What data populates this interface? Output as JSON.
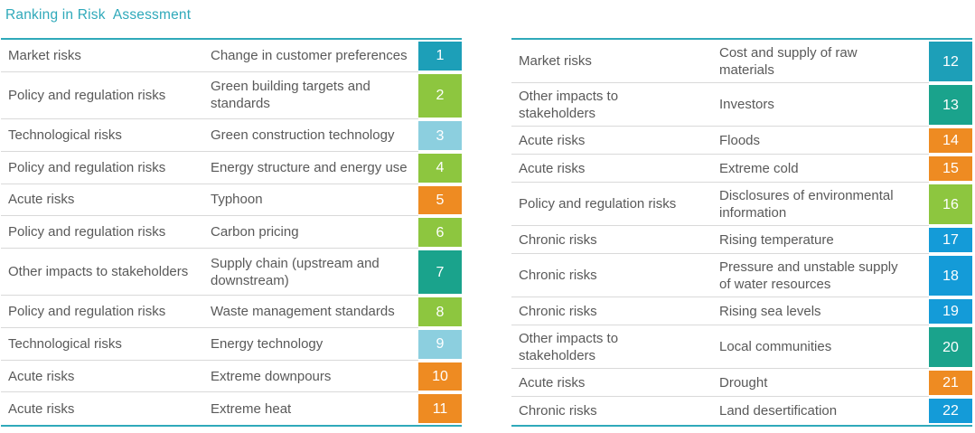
{
  "title": "Ranking in Risk  Assessment",
  "colors": {
    "title": "#2fa9ba",
    "table_border": "#2fa9ba",
    "row_divider": "#d9d9d9",
    "text": "#595959",
    "badge_text": "#ffffff",
    "categories": {
      "Market risks": "#1d9fb8",
      "Policy and regulation risks": "#8dc63f",
      "Technological risks": "#8ccfdf",
      "Acute risks": "#ee8b22",
      "Other impacts to stakeholders": "#1aa38c",
      "Chronic risks": "#149bd8"
    }
  },
  "tables": [
    {
      "rows": [
        {
          "category": "Market risks",
          "risk": "Change in customer preferences",
          "rank": 1
        },
        {
          "category": "Policy and regulation risks",
          "risk": "Green building targets and standards",
          "rank": 2
        },
        {
          "category": "Technological risks",
          "risk": "Green construction technology",
          "rank": 3
        },
        {
          "category": "Policy and regulation risks",
          "risk": "Energy structure and energy use",
          "rank": 4
        },
        {
          "category": "Acute risks",
          "risk": "Typhoon",
          "rank": 5
        },
        {
          "category": "Policy and regulation risks",
          "risk": "Carbon pricing",
          "rank": 6
        },
        {
          "category": "Other impacts to stakeholders",
          "risk": "Supply chain (upstream and downstream)",
          "rank": 7
        },
        {
          "category": "Policy and regulation risks",
          "risk": "Waste management standards",
          "rank": 8
        },
        {
          "category": "Technological risks",
          "risk": "Energy technology",
          "rank": 9
        },
        {
          "category": "Acute risks",
          "risk": "Extreme downpours",
          "rank": 10
        },
        {
          "category": "Acute risks",
          "risk": "Extreme heat",
          "rank": 11
        }
      ]
    },
    {
      "rows": [
        {
          "category": "Market risks",
          "risk": "Cost and supply of raw materials",
          "rank": 12
        },
        {
          "category": "Other impacts to stakeholders",
          "risk": "Investors",
          "rank": 13
        },
        {
          "category": "Acute risks",
          "risk": "Floods",
          "rank": 14
        },
        {
          "category": "Acute risks",
          "risk": "Extreme cold",
          "rank": 15
        },
        {
          "category": "Policy and regulation risks",
          "risk": "Disclosures of environmental information",
          "rank": 16
        },
        {
          "category": "Chronic risks",
          "risk": "Rising temperature",
          "rank": 17
        },
        {
          "category": "Chronic risks",
          "risk": "Pressure and unstable supply of water resources",
          "rank": 18
        },
        {
          "category": "Chronic risks",
          "risk": "Rising sea levels",
          "rank": 19
        },
        {
          "category": "Other impacts to stakeholders",
          "risk": "Local communities",
          "rank": 20
        },
        {
          "category": "Acute risks",
          "risk": "Drought",
          "rank": 21
        },
        {
          "category": "Chronic risks",
          "risk": "Land desertification",
          "rank": 22
        }
      ]
    }
  ]
}
